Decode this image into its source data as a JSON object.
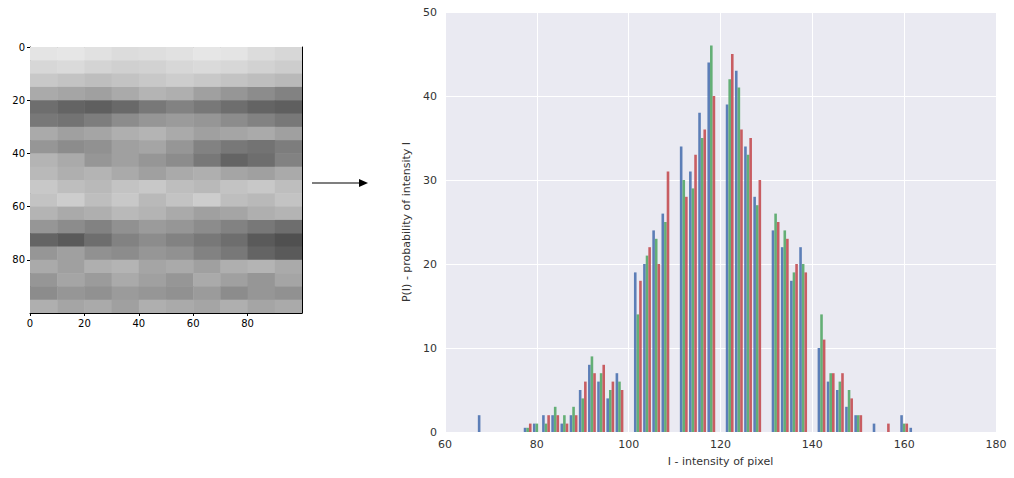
{
  "chart_data": [
    {
      "type": "heatmap",
      "xlim": [
        0,
        100
      ],
      "ylim": [
        100,
        0
      ],
      "xticks": [
        0,
        20,
        40,
        60,
        80
      ],
      "yticks": [
        0,
        20,
        40,
        60,
        80
      ],
      "clim": [
        0,
        255
      ],
      "cells": [
        [
          228,
          230,
          225,
          220,
          222,
          225,
          230,
          228,
          220,
          215
        ],
        [
          215,
          218,
          212,
          208,
          210,
          215,
          218,
          215,
          210,
          205
        ],
        [
          200,
          195,
          190,
          195,
          200,
          205,
          200,
          195,
          190,
          185
        ],
        [
          170,
          165,
          160,
          170,
          180,
          175,
          160,
          150,
          140,
          130
        ],
        [
          110,
          100,
          95,
          105,
          120,
          130,
          120,
          110,
          100,
          95
        ],
        [
          120,
          115,
          125,
          140,
          150,
          155,
          150,
          140,
          130,
          120
        ],
        [
          170,
          160,
          165,
          175,
          180,
          170,
          160,
          165,
          170,
          160
        ],
        [
          150,
          140,
          145,
          160,
          165,
          150,
          130,
          120,
          115,
          125
        ],
        [
          180,
          170,
          150,
          160,
          150,
          140,
          120,
          100,
          110,
          130
        ],
        [
          185,
          175,
          180,
          170,
          160,
          170,
          175,
          165,
          160,
          170
        ],
        [
          200,
          190,
          185,
          195,
          200,
          190,
          185,
          195,
          200,
          190
        ],
        [
          195,
          205,
          190,
          200,
          185,
          195,
          205,
          190,
          185,
          195
        ],
        [
          180,
          170,
          175,
          185,
          180,
          170,
          160,
          165,
          175,
          180
        ],
        [
          150,
          140,
          130,
          145,
          155,
          150,
          140,
          130,
          120,
          110
        ],
        [
          100,
          90,
          110,
          130,
          140,
          130,
          120,
          110,
          90,
          80
        ],
        [
          150,
          160,
          145,
          140,
          150,
          145,
          130,
          120,
          100,
          90
        ],
        [
          170,
          160,
          175,
          180,
          165,
          170,
          160,
          175,
          180,
          170
        ],
        [
          150,
          165,
          155,
          170,
          160,
          150,
          170,
          160,
          150,
          165
        ],
        [
          140,
          150,
          145,
          155,
          150,
          145,
          155,
          140,
          150,
          145
        ],
        [
          175,
          165,
          170,
          160,
          175,
          170,
          165,
          175,
          165,
          170
        ]
      ]
    },
    {
      "type": "bar",
      "xlabel": "I - intensity of pixel",
      "ylabel": "P(I) - probability of intensity I",
      "xlim": [
        60,
        180
      ],
      "xticks": [
        60,
        80,
        100,
        120,
        140,
        160,
        180
      ],
      "ylim": [
        0,
        50
      ],
      "yticks": [
        0,
        10,
        20,
        30,
        40,
        50
      ],
      "grid": true,
      "x": [
        66,
        68,
        70,
        72,
        74,
        76,
        78,
        80,
        82,
        84,
        86,
        88,
        90,
        92,
        94,
        96,
        98,
        100,
        102,
        104,
        106,
        108,
        110,
        112,
        114,
        116,
        118,
        120,
        122,
        124,
        126,
        128,
        130,
        132,
        134,
        136,
        138,
        140,
        142,
        144,
        146,
        148,
        150,
        152,
        154,
        156,
        158,
        160,
        162
      ],
      "series": [
        {
          "color": "#4C72B0",
          "values": [
            0,
            2,
            0,
            0,
            0,
            0,
            0.5,
            1,
            2,
            2,
            1,
            2,
            5,
            8,
            6,
            4,
            7,
            0,
            19,
            20,
            24,
            26,
            0,
            34,
            31,
            38,
            44,
            0,
            39,
            43,
            34,
            28,
            0,
            24,
            22,
            18,
            22,
            0,
            10,
            6,
            5,
            3,
            2,
            0,
            1,
            0,
            0,
            2,
            0.5
          ]
        },
        {
          "color": "#55A868",
          "values": [
            0,
            0,
            0,
            0,
            0,
            0,
            0.5,
            1,
            1,
            3,
            2,
            3,
            4,
            9,
            7,
            5,
            6,
            0,
            14,
            21,
            23,
            25,
            0,
            30,
            29,
            35,
            46,
            0,
            42,
            41,
            33,
            27,
            0,
            26,
            24,
            19,
            20,
            0,
            14,
            7,
            6,
            5,
            2,
            0,
            0,
            0,
            0,
            1,
            0
          ]
        },
        {
          "color": "#C44E52",
          "values": [
            0,
            0,
            0,
            0,
            0,
            0,
            1,
            0,
            2,
            2,
            1,
            2,
            6,
            7,
            8,
            6,
            5,
            0,
            18,
            22,
            20,
            31,
            0,
            28,
            33,
            36,
            40,
            0,
            45,
            36,
            35,
            30,
            0,
            25,
            23,
            20,
            19,
            0,
            11,
            7,
            7,
            4,
            2,
            0,
            0,
            1,
            0,
            1,
            0
          ]
        }
      ]
    }
  ]
}
